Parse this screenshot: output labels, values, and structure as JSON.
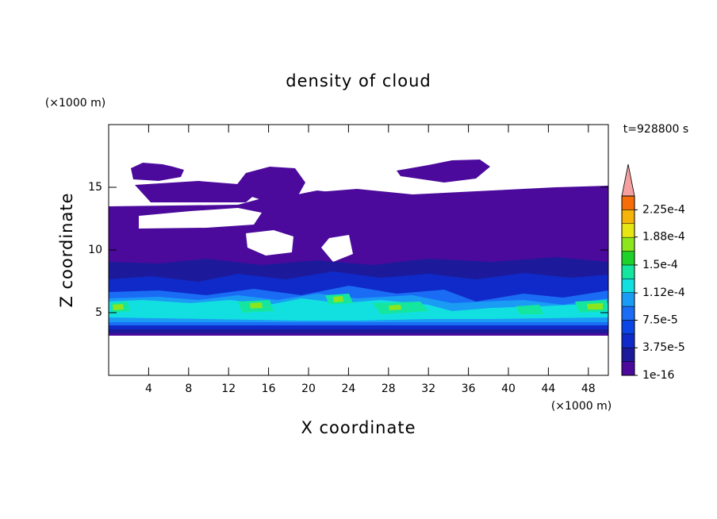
{
  "chart_data": {
    "type": "contour",
    "title": "density of cloud",
    "time_label": "t=928800 s",
    "x_label": "X coordinate",
    "y_label": "Z coordinate",
    "x_unit": "(×1000 m)",
    "y_unit": "(×1000 m)",
    "xlim": [
      0,
      50
    ],
    "ylim": [
      0,
      20
    ],
    "xticks": [
      4,
      8,
      12,
      16,
      20,
      24,
      28,
      32,
      36,
      40,
      44,
      48
    ],
    "yticks": [
      5,
      10,
      15
    ],
    "colorbar": {
      "lim": [
        0,
        0.00024375
      ],
      "ticks": [
        1e-16,
        {
          "value": 3.75e-05,
          "label": "3.75e-5"
        },
        {
          "value": 7.5e-05,
          "label": "7.5e-5"
        },
        {
          "value": 0.000112,
          "label": "1.12e-4"
        },
        {
          "value": 0.00015,
          "label": "1.5e-4"
        },
        {
          "value": 0.000188,
          "label": "1.88e-4"
        },
        {
          "value": 0.000225,
          "label": "2.25e-4"
        }
      ],
      "colors": [
        "#4b0a9c",
        "#1c1a9a",
        "#0f2ac8",
        "#0a45e6",
        "#1a6cf5",
        "#1a9cf5",
        "#12e0e0",
        "#14e6a0",
        "#1ed22a",
        "#8ce61e",
        "#e6e614",
        "#f5b40a",
        "#f56e0a",
        "#e6281e"
      ],
      "extend_color": "#f5a0a0"
    }
  }
}
